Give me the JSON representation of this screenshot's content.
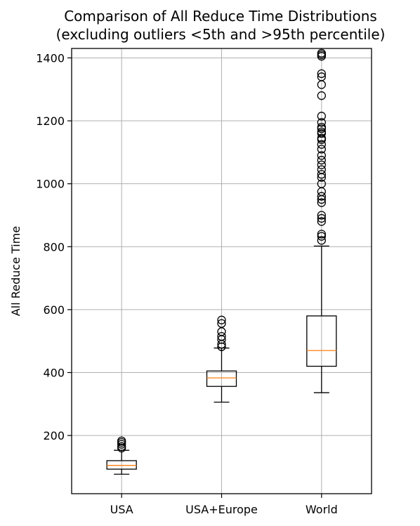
{
  "chart_data": {
    "type": "boxplot",
    "title_lines": [
      "Comparison of All Reduce Time Distributions",
      "(excluding outliers <5th and >95th percentile)"
    ],
    "xlabel": "",
    "ylabel": "All Reduce Time",
    "ylim": [
      15,
      1430
    ],
    "yticks": [
      200,
      400,
      600,
      800,
      1000,
      1200,
      1400
    ],
    "grid": true,
    "categories": [
      "USA",
      "USA+Europe",
      "World"
    ],
    "boxes": [
      {
        "label": "USA",
        "whislo": 77,
        "q1": 93,
        "med": 105,
        "q3": 120,
        "whishi": 153,
        "fliers": [
          160,
          165,
          172,
          178,
          183
        ]
      },
      {
        "label": "USA+Europe",
        "whislo": 306,
        "q1": 356,
        "med": 383,
        "q3": 405,
        "whishi": 478,
        "fliers": [
          482,
          490,
          505,
          515,
          530,
          556,
          567
        ]
      },
      {
        "label": "World",
        "whislo": 336,
        "q1": 420,
        "med": 470,
        "q3": 580,
        "whishi": 802,
        "fliers": [
          820,
          833,
          840,
          880,
          890,
          900,
          940,
          950,
          960,
          975,
          1000,
          1020,
          1030,
          1045,
          1060,
          1075,
          1090,
          1110,
          1125,
          1140,
          1145,
          1160,
          1165,
          1175,
          1180,
          1195,
          1215,
          1280,
          1315,
          1340,
          1350,
          1405,
          1410,
          1415
        ]
      }
    ],
    "colors": {
      "median": "#ff7f0e",
      "box": "#000000",
      "grid": "#b0b0b0"
    }
  }
}
